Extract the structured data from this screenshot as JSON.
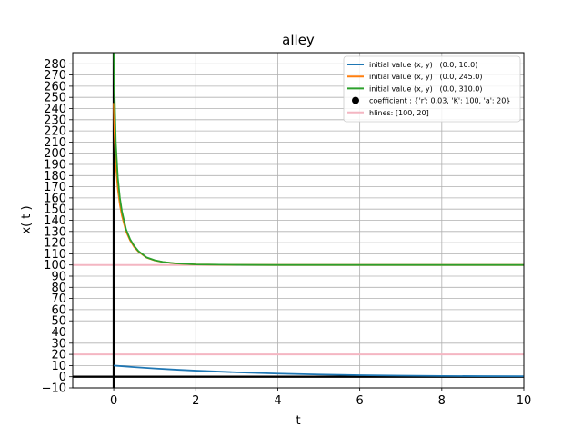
{
  "chart_data": {
    "type": "line",
    "title": "alley",
    "xlabel": "t",
    "ylabel": "x( t )",
    "xlim": [
      -1,
      10
    ],
    "ylim": [
      -10,
      290
    ],
    "xticks": [
      0,
      2,
      4,
      6,
      8,
      10
    ],
    "yticks": [
      -10,
      0,
      10,
      20,
      30,
      40,
      50,
      60,
      70,
      80,
      90,
      100,
      110,
      120,
      130,
      140,
      150,
      160,
      170,
      180,
      190,
      200,
      210,
      220,
      230,
      240,
      250,
      260,
      270,
      280
    ],
    "grid": true,
    "legend_position": "top-right",
    "series": [
      {
        "name": "initial value (x, y) : (0.0, 10.0)",
        "color": "#1f77b4",
        "x": [
          0,
          0.5,
          1,
          1.5,
          2,
          3,
          4,
          5,
          6,
          7,
          8,
          9,
          10
        ],
        "y": [
          10,
          8.6,
          7.4,
          6.3,
          5.4,
          3.9,
          2.8,
          2.0,
          1.4,
          1.0,
          0.7,
          0.5,
          0.4
        ]
      },
      {
        "name": "initial value (x, y) : (0.0, 245.0)",
        "color": "#ff7f0e",
        "x": [
          0,
          0.02,
          0.05,
          0.1,
          0.15,
          0.2,
          0.3,
          0.4,
          0.5,
          0.6,
          0.8,
          1,
          1.2,
          1.5,
          2,
          3,
          4,
          6,
          8,
          10
        ],
        "y": [
          245,
          216,
          190,
          168,
          154,
          144,
          130,
          122,
          116,
          112,
          106.5,
          104,
          102.6,
          101.4,
          100.5,
          100.1,
          100,
          100,
          100,
          100
        ]
      },
      {
        "name": "initial value (x, y) : (0.0, 310.0)",
        "color": "#2ca02c",
        "x": [
          0,
          0.02,
          0.05,
          0.1,
          0.15,
          0.2,
          0.3,
          0.4,
          0.5,
          0.6,
          0.8,
          1,
          1.2,
          1.5,
          2,
          3,
          4,
          6,
          8,
          10
        ],
        "y": [
          310,
          255,
          210,
          178,
          160,
          148,
          132,
          123,
          117,
          112.5,
          106.8,
          104.2,
          102.7,
          101.5,
          100.5,
          100.1,
          100,
          100,
          100,
          100
        ]
      }
    ],
    "points": {
      "name": "coefficient : {'r': 0.03, 'K': 100, 'a': 20}",
      "color": "#000000",
      "data": []
    },
    "hlines": {
      "name": "hlines: [100, 20]",
      "color": "#f4b6c2",
      "values": [
        100,
        20
      ]
    },
    "reference_axes": {
      "x": 0,
      "y": 0,
      "color": "#000000"
    }
  }
}
